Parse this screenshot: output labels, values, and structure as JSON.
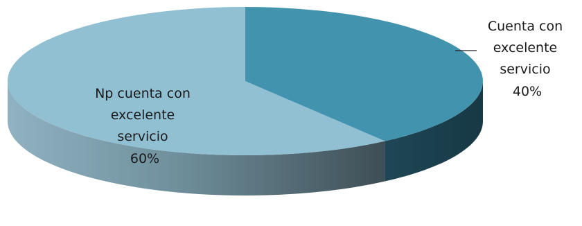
{
  "chart_data": {
    "type": "pie",
    "variant": "3d",
    "title": "",
    "slices": [
      {
        "label_lines": [
          "Cuenta con",
          "excelente",
          "servicio"
        ],
        "percent_label": "40%",
        "value": 40,
        "color": "#4293AE",
        "side_color": "#1B4150"
      },
      {
        "label_lines": [
          "Np cuenta con",
          "excelente",
          "servicio"
        ],
        "percent_label": "60%",
        "value": 60,
        "color": "#92C0D3",
        "side_color": "#5E7F8D"
      }
    ]
  }
}
